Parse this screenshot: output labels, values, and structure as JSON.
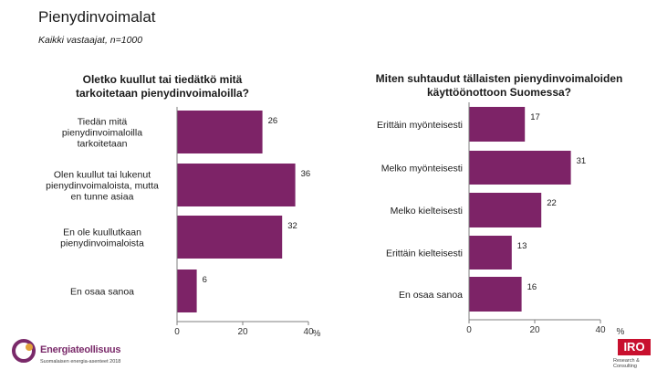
{
  "title": "Pienydinvoimalat",
  "subtitle": "Kaikki vastaajat, n=1000",
  "chart_data": [
    {
      "type": "bar",
      "orientation": "horizontal",
      "title": "Oletko kuullut tai tiedätkö mitä tarkoitetaan pienydinvoimaloilla?",
      "categories": [
        "Tiedän mitä pienydinvoimaloilla tarkoitetaan",
        "Olen kuullut tai lukenut pienydinvoimaloista, mutta en tunne asiaa",
        "En ole kuullutkaan pienydinvoimaloista",
        "En osaa sanoa"
      ],
      "values": [
        26,
        36,
        32,
        6
      ],
      "xlim": [
        0,
        40
      ],
      "xticks": [
        "0",
        "20",
        "40"
      ],
      "unit": "%",
      "color": "#7d2367",
      "grid": false
    },
    {
      "type": "bar",
      "orientation": "horizontal",
      "title": "Miten suhtaudut tällaisten pienydinvoimaloiden käyttöönottoon Suomessa?",
      "categories": [
        "Erittäin myönteisesti",
        "Melko myönteisesti",
        "Melko kielteisesti",
        "Erittäin kielteisesti",
        "En osaa sanoa"
      ],
      "values": [
        17,
        31,
        22,
        13,
        16
      ],
      "xlim": [
        0,
        40
      ],
      "xticks": [
        "0",
        "20",
        "40"
      ],
      "unit": "%",
      "color": "#7d2367",
      "grid": false
    }
  ],
  "logos": {
    "left_name": "Energiateollisuus",
    "left_tag": "Suomalaisen energia-asenteet 2018",
    "right_name": "IRO",
    "right_tag": "Research & Consulting"
  },
  "colors": {
    "bar": "#7d2367",
    "axis": "#7f7f7f",
    "logo_red": "#c8102e"
  }
}
